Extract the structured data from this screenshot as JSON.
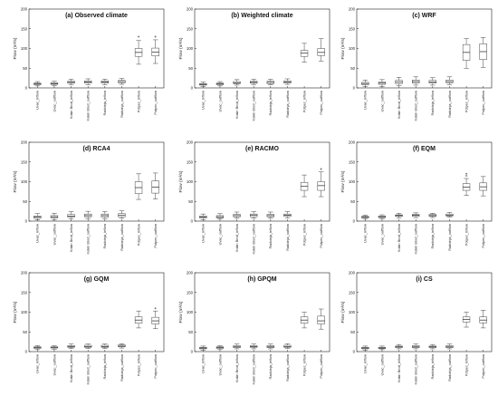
{
  "chart_data": [
    {
      "type": "box",
      "title": "(a) Observed climate",
      "ylabel": "Flow (m³/s)",
      "ylim": [
        0,
        200
      ],
      "yticks": [
        0,
        50,
        100,
        150,
        200
      ],
      "categories": [
        "Uvac_inflow",
        "Uvac_outflow",
        "Kokin Brod_inflow",
        "Kokin Brod_outflow",
        "Radoinja_inflow",
        "Radoinja_outflow",
        "Potpec_inflow",
        "Potpec_outflow"
      ],
      "boxes": [
        {
          "min": 5,
          "q1": 8,
          "median": 10,
          "q3": 12,
          "max": 16
        },
        {
          "min": 6,
          "q1": 9,
          "median": 11,
          "q3": 13,
          "max": 17
        },
        {
          "min": 8,
          "q1": 12,
          "median": 14,
          "q3": 17,
          "max": 22
        },
        {
          "min": 8,
          "q1": 12,
          "median": 15,
          "q3": 18,
          "max": 23
        },
        {
          "min": 8,
          "q1": 12,
          "median": 15,
          "q3": 18,
          "max": 22
        },
        {
          "min": 9,
          "q1": 13,
          "median": 16,
          "q3": 19,
          "max": 24
        },
        {
          "min": 60,
          "q1": 80,
          "median": 90,
          "q3": 100,
          "max": 120,
          "outliers": [
            130
          ]
        },
        {
          "min": 62,
          "q1": 81,
          "median": 91,
          "q3": 101,
          "max": 122,
          "outliers": [
            130
          ]
        }
      ]
    },
    {
      "type": "box",
      "title": "(b) Weighted climate",
      "ylabel": "Flow (m³/s)",
      "ylim": [
        0,
        200
      ],
      "yticks": [
        0,
        50,
        100,
        150,
        200
      ],
      "categories": [
        "Uvac_inflow",
        "Uvac_outflow",
        "Kokin Brod_inflow",
        "Kokin Brod_outflow",
        "Radoinja_inflow",
        "Radoinja_outflow",
        "Potpec_inflow",
        "Potpec_outflow"
      ],
      "boxes": [
        {
          "min": 4,
          "q1": 7,
          "median": 9,
          "q3": 11,
          "max": 15
        },
        {
          "min": 5,
          "q1": 8,
          "median": 10,
          "q3": 12,
          "max": 16
        },
        {
          "min": 7,
          "q1": 11,
          "median": 13,
          "q3": 16,
          "max": 21
        },
        {
          "min": 8,
          "q1": 12,
          "median": 14,
          "q3": 17,
          "max": 22
        },
        {
          "min": 8,
          "q1": 11,
          "median": 14,
          "q3": 17,
          "max": 22
        },
        {
          "min": 9,
          "q1": 12,
          "median": 15,
          "q3": 18,
          "max": 23
        },
        {
          "min": 65,
          "q1": 80,
          "median": 88,
          "q3": 95,
          "max": 113
        },
        {
          "min": 68,
          "q1": 82,
          "median": 90,
          "q3": 100,
          "max": 125
        }
      ]
    },
    {
      "type": "box",
      "title": "(c) WRF",
      "ylabel": "Flow (m³/s)",
      "ylim": [
        0,
        200
      ],
      "yticks": [
        0,
        50,
        100,
        150,
        200
      ],
      "categories": [
        "Uvac_inflow",
        "Uvac_outflow",
        "Kokin Brod_inflow",
        "Kokin Brod_outflow",
        "Radoinja_inflow",
        "Radoinja_outflow",
        "Potpec_inflow",
        "Potpec_outflow"
      ],
      "boxes": [
        {
          "min": 3,
          "q1": 8,
          "median": 11,
          "q3": 14,
          "max": 20
        },
        {
          "min": 4,
          "q1": 9,
          "median": 12,
          "q3": 15,
          "max": 21
        },
        {
          "min": 6,
          "q1": 11,
          "median": 15,
          "q3": 19,
          "max": 27
        },
        {
          "min": 7,
          "q1": 12,
          "median": 16,
          "q3": 20,
          "max": 28
        },
        {
          "min": 7,
          "q1": 12,
          "median": 15,
          "q3": 19,
          "max": 26
        },
        {
          "min": 8,
          "q1": 13,
          "median": 16,
          "q3": 20,
          "max": 28
        },
        {
          "min": 50,
          "q1": 70,
          "median": 90,
          "q3": 110,
          "max": 125
        },
        {
          "min": 52,
          "q1": 72,
          "median": 92,
          "q3": 112,
          "max": 128
        }
      ]
    },
    {
      "type": "box",
      "title": "(d) RCA4",
      "ylabel": "Flow (m³/s)",
      "ylim": [
        0,
        200
      ],
      "yticks": [
        0,
        50,
        100,
        150,
        200
      ],
      "categories": [
        "Uvac_inflow",
        "Uvac_outflow",
        "Kokin Brod_inflow",
        "Kokin Brod_outflow",
        "Radoinja_inflow",
        "Radoinja_outflow",
        "Potpec_inflow",
        "Potpec_outflow"
      ],
      "boxes": [
        {
          "min": 3,
          "q1": 7,
          "median": 10,
          "q3": 13,
          "max": 19
        },
        {
          "min": 4,
          "q1": 8,
          "median": 11,
          "q3": 14,
          "max": 20
        },
        {
          "min": 6,
          "q1": 10,
          "median": 13,
          "q3": 17,
          "max": 24
        },
        {
          "min": 6,
          "q1": 11,
          "median": 14,
          "q3": 18,
          "max": 25
        },
        {
          "min": 6,
          "q1": 10,
          "median": 14,
          "q3": 18,
          "max": 24
        },
        {
          "min": 7,
          "q1": 11,
          "median": 15,
          "q3": 19,
          "max": 26
        },
        {
          "min": 55,
          "q1": 70,
          "median": 85,
          "q3": 100,
          "max": 120
        },
        {
          "min": 56,
          "q1": 71,
          "median": 86,
          "q3": 102,
          "max": 122
        }
      ]
    },
    {
      "type": "box",
      "title": "(e) RACMO",
      "ylabel": "Flow (m³/s)",
      "ylim": [
        0,
        200
      ],
      "yticks": [
        0,
        50,
        100,
        150,
        200
      ],
      "categories": [
        "Uvac_inflow",
        "Uvac_outflow",
        "Kokin Brod_inflow",
        "Kokin Brod_outflow",
        "Radoinja_inflow",
        "Radoinja_outflow",
        "Potpec_inflow",
        "Potpec_outflow"
      ],
      "boxes": [
        {
          "min": 4,
          "q1": 8,
          "median": 10,
          "q3": 13,
          "max": 18
        },
        {
          "min": 5,
          "q1": 8,
          "median": 11,
          "q3": 14,
          "max": 19
        },
        {
          "min": 7,
          "q1": 11,
          "median": 14,
          "q3": 17,
          "max": 23
        },
        {
          "min": 7,
          "q1": 11,
          "median": 15,
          "q3": 18,
          "max": 24
        },
        {
          "min": 7,
          "q1": 11,
          "median": 14,
          "q3": 17,
          "max": 23
        },
        {
          "min": 8,
          "q1": 12,
          "median": 15,
          "q3": 18,
          "max": 24
        },
        {
          "min": 62,
          "q1": 78,
          "median": 88,
          "q3": 98,
          "max": 117
        },
        {
          "min": 62,
          "q1": 78,
          "median": 90,
          "q3": 100,
          "max": 125,
          "outliers": [
            132
          ]
        }
      ]
    },
    {
      "type": "box",
      "title": "(f) EQM",
      "ylabel": "Flow (m³/s)",
      "ylim": [
        0,
        200
      ],
      "yticks": [
        0,
        50,
        100,
        150,
        200
      ],
      "categories": [
        "Uvac_inflow",
        "Uvac_outflow",
        "Kokin Brod_inflow",
        "Kokin Brod_outflow",
        "Radoinja_inflow",
        "Radoinja_outflow",
        "Potpec_inflow",
        "Potpec_outflow"
      ],
      "boxes": [
        {
          "min": 5,
          "q1": 8,
          "median": 10,
          "q3": 12,
          "max": 15
        },
        {
          "min": 6,
          "q1": 9,
          "median": 11,
          "q3": 13,
          "max": 16
        },
        {
          "min": 8,
          "q1": 12,
          "median": 14,
          "q3": 16,
          "max": 20
        },
        {
          "min": 9,
          "q1": 12,
          "median": 15,
          "q3": 17,
          "max": 21
        },
        {
          "min": 9,
          "q1": 12,
          "median": 14,
          "q3": 17,
          "max": 20
        },
        {
          "min": 10,
          "q1": 13,
          "median": 15,
          "q3": 18,
          "max": 22
        },
        {
          "min": 65,
          "q1": 78,
          "median": 86,
          "q3": 95,
          "max": 108,
          "outliers": [
            115,
            120
          ]
        },
        {
          "min": 64,
          "q1": 78,
          "median": 87,
          "q3": 97,
          "max": 113
        }
      ]
    },
    {
      "type": "box",
      "title": "(g) GQM",
      "ylabel": "Flow (m³/s)",
      "ylim": [
        0,
        200
      ],
      "yticks": [
        0,
        50,
        100,
        150,
        200
      ],
      "categories": [
        "Uvac_inflow",
        "Uvac_outflow",
        "Kokin Brod_inflow",
        "Kokin Brod_outflow",
        "Radoinja_inflow",
        "Radoinja_outflow",
        "Potpec_inflow",
        "Potpec_outflow"
      ],
      "boxes": [
        {
          "min": 5,
          "q1": 8,
          "median": 10,
          "q3": 12,
          "max": 15
        },
        {
          "min": 6,
          "q1": 9,
          "median": 10,
          "q3": 12,
          "max": 15
        },
        {
          "min": 8,
          "q1": 11,
          "median": 13,
          "q3": 15,
          "max": 19
        },
        {
          "min": 8,
          "q1": 11,
          "median": 13,
          "q3": 16,
          "max": 19
        },
        {
          "min": 8,
          "q1": 11,
          "median": 13,
          "q3": 16,
          "max": 19
        },
        {
          "min": 9,
          "q1": 12,
          "median": 14,
          "q3": 17,
          "max": 20
        },
        {
          "min": 60,
          "q1": 72,
          "median": 80,
          "q3": 88,
          "max": 103
        },
        {
          "min": 58,
          "q1": 70,
          "median": 78,
          "q3": 87,
          "max": 103,
          "outliers": [
            110
          ]
        }
      ]
    },
    {
      "type": "box",
      "title": "(h) GPQM",
      "ylabel": "Flow (m³/s)",
      "ylim": [
        0,
        200
      ],
      "yticks": [
        0,
        50,
        100,
        150,
        200
      ],
      "categories": [
        "Uvac_inflow",
        "Uvac_outflow",
        "Kokin Brod_inflow",
        "Kokin Brod_outflow",
        "Radoinja_inflow",
        "Radoinja_outflow",
        "Potpec_inflow",
        "Potpec_outflow"
      ],
      "boxes": [
        {
          "min": 4,
          "q1": 7,
          "median": 9,
          "q3": 11,
          "max": 14
        },
        {
          "min": 5,
          "q1": 8,
          "median": 10,
          "q3": 12,
          "max": 15
        },
        {
          "min": 7,
          "q1": 10,
          "median": 12,
          "q3": 15,
          "max": 19
        },
        {
          "min": 7,
          "q1": 11,
          "median": 13,
          "q3": 15,
          "max": 19
        },
        {
          "min": 7,
          "q1": 10,
          "median": 12,
          "q3": 15,
          "max": 19
        },
        {
          "min": 8,
          "q1": 11,
          "median": 13,
          "q3": 16,
          "max": 20
        },
        {
          "min": 60,
          "q1": 72,
          "median": 80,
          "q3": 88,
          "max": 100
        },
        {
          "min": 57,
          "q1": 70,
          "median": 78,
          "q3": 90,
          "max": 108
        }
      ]
    },
    {
      "type": "box",
      "title": "(i) CS",
      "ylabel": "Flow (m³/s)",
      "ylim": [
        0,
        200
      ],
      "yticks": [
        0,
        50,
        100,
        150,
        200
      ],
      "categories": [
        "Uvac_inflow",
        "Uvac_outflow",
        "Kokin Brod_inflow",
        "Kokin Brod_outflow",
        "Radoinja_inflow",
        "Radoinja_outflow",
        "Potpec_inflow",
        "Potpec_outflow"
      ],
      "boxes": [
        {
          "min": 4,
          "q1": 7,
          "median": 9,
          "q3": 11,
          "max": 14
        },
        {
          "min": 5,
          "q1": 8,
          "median": 9,
          "q3": 11,
          "max": 14
        },
        {
          "min": 7,
          "q1": 10,
          "median": 12,
          "q3": 14,
          "max": 18
        },
        {
          "min": 7,
          "q1": 10,
          "median": 12,
          "q3": 15,
          "max": 19
        },
        {
          "min": 7,
          "q1": 10,
          "median": 12,
          "q3": 14,
          "max": 18
        },
        {
          "min": 7,
          "q1": 10,
          "median": 12,
          "q3": 15,
          "max": 19
        },
        {
          "min": 62,
          "q1": 75,
          "median": 82,
          "q3": 88,
          "max": 100
        },
        {
          "min": 60,
          "q1": 73,
          "median": 80,
          "q3": 88,
          "max": 105
        }
      ]
    }
  ]
}
